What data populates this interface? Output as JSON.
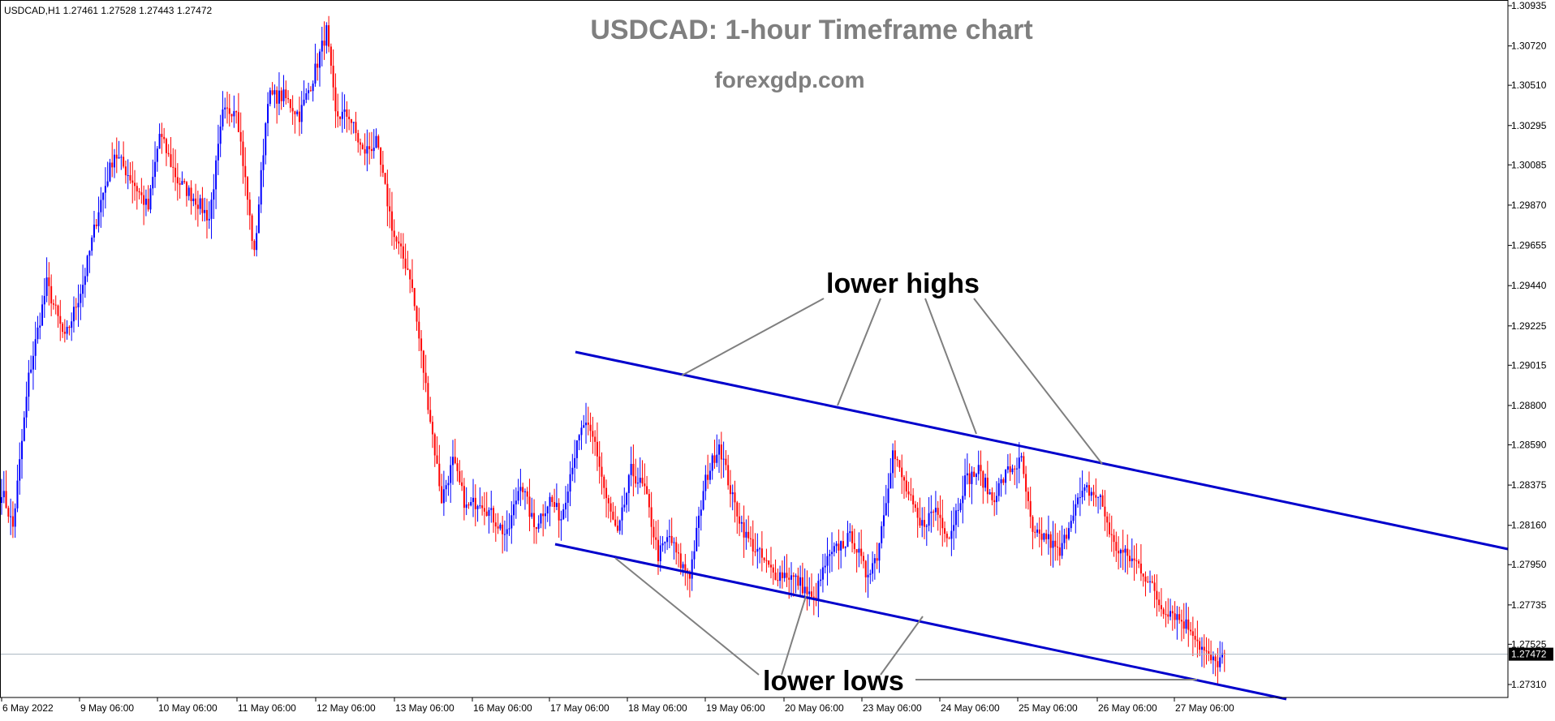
{
  "header": {
    "symbol_info": "USDCAD,H1  1.27461 1.27528 1.27443 1.27472",
    "title": "USDCAD: 1-hour Timeframe chart",
    "subtitle": "forexgdp.com"
  },
  "colors": {
    "bull": "#0000ff",
    "bear": "#ff0000",
    "channel": "#0000cc",
    "annotation": "#7f7f7f",
    "title": "#7f7f7f",
    "price_line": "#a8b4c0",
    "current_price_bg": "#000000"
  },
  "chart_data": {
    "type": "candlestick",
    "timeframe": "H1",
    "symbol": "USDCAD",
    "ylim": [
      1.272,
      1.3094
    ],
    "y_ticks": [
      "1.30935",
      "1.30720",
      "1.30510",
      "1.30295",
      "1.30085",
      "1.29870",
      "1.29655",
      "1.29440",
      "1.29225",
      "1.29015",
      "1.28800",
      "1.28590",
      "1.28375",
      "1.28160",
      "1.27950",
      "1.27735",
      "1.27525",
      "1.27310"
    ],
    "x_ticks": [
      "6 May 2022",
      "9 May 06:00",
      "10 May 06:00",
      "11 May 06:00",
      "12 May 06:00",
      "13 May 06:00",
      "16 May 06:00",
      "17 May 06:00",
      "18 May 06:00",
      "19 May 06:00",
      "20 May 06:00",
      "23 May 06:00",
      "24 May 06:00",
      "25 May 06:00",
      "26 May 06:00",
      "27 May 06:00"
    ],
    "current_price": "1.27472",
    "path": [
      [
        0,
        1.2835
      ],
      [
        5,
        1.2815
      ],
      [
        12,
        1.2895
      ],
      [
        20,
        1.2945
      ],
      [
        28,
        1.2915
      ],
      [
        36,
        1.2945
      ],
      [
        43,
        1.2985
      ],
      [
        50,
        1.3015
      ],
      [
        58,
        1.3
      ],
      [
        65,
        1.2985
      ],
      [
        70,
        1.3025
      ],
      [
        78,
        1.3
      ],
      [
        86,
        1.299
      ],
      [
        92,
        1.298
      ],
      [
        98,
        1.3035
      ],
      [
        104,
        1.304
      ],
      [
        112,
        1.296
      ],
      [
        118,
        1.3045
      ],
      [
        125,
        1.3045
      ],
      [
        132,
        1.3035
      ],
      [
        138,
        1.3055
      ],
      [
        144,
        1.308
      ],
      [
        148,
        1.3035
      ],
      [
        154,
        1.3035
      ],
      [
        160,
        1.3015
      ],
      [
        166,
        1.302
      ],
      [
        174,
        1.297
      ],
      [
        181,
        1.295
      ],
      [
        188,
        1.289
      ],
      [
        195,
        1.283
      ],
      [
        200,
        1.285
      ],
      [
        206,
        1.2825
      ],
      [
        212,
        1.283
      ],
      [
        218,
        1.282
      ],
      [
        224,
        1.281
      ],
      [
        230,
        1.284
      ],
      [
        236,
        1.2815
      ],
      [
        243,
        1.283
      ],
      [
        248,
        1.282
      ],
      [
        253,
        1.285
      ],
      [
        258,
        1.287
      ],
      [
        263,
        1.286
      ],
      [
        268,
        1.283
      ],
      [
        273,
        1.281
      ],
      [
        279,
        1.2845
      ],
      [
        285,
        1.2835
      ],
      [
        291,
        1.28
      ],
      [
        296,
        1.281
      ],
      [
        301,
        1.2795
      ],
      [
        305,
        1.279
      ],
      [
        312,
        1.284
      ],
      [
        318,
        1.286
      ],
      [
        324,
        1.283
      ],
      [
        330,
        1.281
      ],
      [
        336,
        1.28
      ],
      [
        342,
        1.279
      ],
      [
        348,
        1.279
      ],
      [
        354,
        1.2785
      ],
      [
        360,
        1.2775
      ],
      [
        365,
        1.2795
      ],
      [
        371,
        1.2805
      ],
      [
        377,
        1.281
      ],
      [
        383,
        1.279
      ],
      [
        388,
        1.28
      ],
      [
        395,
        1.2855
      ],
      [
        401,
        1.2835
      ],
      [
        407,
        1.2815
      ],
      [
        414,
        1.2825
      ],
      [
        420,
        1.281
      ],
      [
        427,
        1.284
      ],
      [
        433,
        1.2845
      ],
      [
        439,
        1.283
      ],
      [
        446,
        1.2845
      ],
      [
        452,
        1.285
      ],
      [
        457,
        1.281
      ],
      [
        463,
        1.281
      ],
      [
        469,
        1.28
      ],
      [
        475,
        1.2825
      ],
      [
        481,
        1.2835
      ],
      [
        487,
        1.283
      ],
      [
        493,
        1.2805
      ],
      [
        498,
        1.28
      ],
      [
        504,
        1.2795
      ],
      [
        509,
        1.2785
      ],
      [
        514,
        1.2772
      ],
      [
        519,
        1.277
      ],
      [
        523,
        1.2765
      ],
      [
        528,
        1.276
      ],
      [
        531,
        1.2752
      ],
      [
        535,
        1.2745
      ],
      [
        538,
        1.2742
      ],
      [
        542,
        1.2747
      ]
    ]
  },
  "annotations": {
    "lower_highs": "lower highs",
    "lower_lows": "lower lows"
  }
}
